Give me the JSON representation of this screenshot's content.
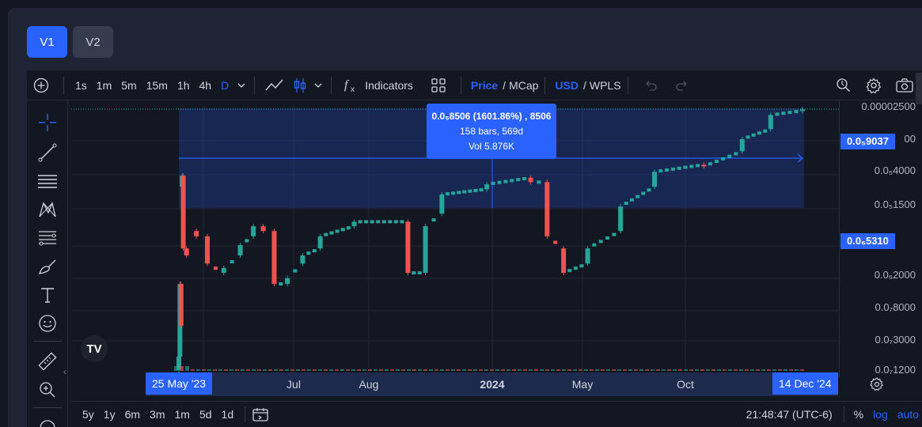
{
  "version_tabs": {
    "active": "V1",
    "inactive": "V2"
  },
  "toolbar": {
    "timeframes": [
      "1s",
      "1m",
      "5m",
      "15m",
      "1h",
      "4h",
      "D"
    ],
    "active_timeframe": "D",
    "indicators_label": "Indicators",
    "price_label": "Price",
    "mcap_label": "MCap",
    "usd_label": "USD",
    "wpls_label": "WPLS",
    "slash": "/"
  },
  "price_axis": {
    "ticks": [
      "0.00002500",
      "0.0₅4000",
      "0.0₅1500",
      "0.0₆2000",
      "0.0₇8000",
      "0.0₇3000",
      "0.0₇1200"
    ],
    "top_partial": "00",
    "current_price_tag": "0.0₅9037",
    "low_price_tag": "0.0₆5310"
  },
  "time_axis": {
    "start_tag": "25 May '23",
    "end_tag": "14 Dec '24",
    "labels": [
      "Jul",
      "Aug",
      "2024",
      "May",
      "Oct"
    ],
    "bold_label": "2024"
  },
  "measure_tooltip": {
    "line1": "0.0₅8506 (1601.86%) , 8506",
    "line2": "158 bars, 569d",
    "line3": "Vol 5.876K"
  },
  "bottom_bar": {
    "ranges": [
      "5y",
      "1y",
      "6m",
      "3m",
      "1m",
      "5d",
      "1d"
    ],
    "clock": "21:48:47 (UTC-6)",
    "percent": "%",
    "log": "log",
    "auto": "auto"
  },
  "logo_text": "TV",
  "colors": {
    "accent": "#2962ff",
    "up": "#26a69a",
    "down": "#ef5350",
    "background": "#131722",
    "panel": "#1e2433"
  },
  "chart_data": {
    "type": "candlestick",
    "title": "",
    "xlabel": "",
    "ylabel": "",
    "x_range": [
      "2023-05-25",
      "2024-12-14"
    ],
    "y_scale": "log",
    "grid": true,
    "series": [
      {
        "values": [
          {
            "t": "2023-05-25",
            "o": 1.2e-07,
            "c": 1.5e-07
          },
          {
            "t": "2023-05-26",
            "o": 1.5e-07,
            "c": 5e-07
          },
          {
            "t": "2023-05-27",
            "o": 5e-07,
            "c": 2.5e-07
          },
          {
            "t": "2023-05-28",
            "o": 2.5e-06,
            "c": 3e-06
          },
          {
            "t": "2023-05-29",
            "o": 3e-06,
            "c": 9e-07
          },
          {
            "t": "2023-06-01",
            "o": 9e-07,
            "c": 8e-07
          },
          {
            "t": "2023-06-10",
            "o": 1.2e-06,
            "c": 1.1e-06
          },
          {
            "t": "2023-06-20",
            "o": 1.1e-06,
            "c": 7e-07
          },
          {
            "t": "2023-07-05",
            "o": 6e-07,
            "c": 6.5e-07
          },
          {
            "t": "2023-07-20",
            "o": 8e-07,
            "c": 9.5e-07
          },
          {
            "t": "2023-08-01",
            "o": 1.1e-06,
            "c": 1.3e-06
          },
          {
            "t": "2023-08-10",
            "o": 1.3e-06,
            "c": 1.2e-06
          },
          {
            "t": "2023-08-20",
            "o": 1.2e-06,
            "c": 5e-07
          },
          {
            "t": "2023-09-01",
            "o": 5e-07,
            "c": 5.5e-07
          },
          {
            "t": "2023-09-15",
            "o": 7e-07,
            "c": 8e-07
          },
          {
            "t": "2023-10-01",
            "o": 9e-07,
            "c": 1.1e-06
          },
          {
            "t": "2023-11-01",
            "o": 1.3e-06,
            "c": 1.4e-06
          },
          {
            "t": "2023-12-20",
            "o": 1.4e-06,
            "c": 6e-07
          },
          {
            "t": "2024-01-05",
            "o": 6e-07,
            "c": 1.3e-06
          },
          {
            "t": "2024-01-20",
            "o": 1.6e-06,
            "c": 2.2e-06
          },
          {
            "t": "2024-03-01",
            "o": 2.4e-06,
            "c": 2.6e-06
          },
          {
            "t": "2024-04-10",
            "o": 2.9e-06,
            "c": 2.7e-06
          },
          {
            "t": "2024-04-25",
            "o": 2.7e-06,
            "c": 1.1e-06
          },
          {
            "t": "2024-05-10",
            "o": 9e-07,
            "c": 6e-07
          },
          {
            "t": "2024-06-01",
            "o": 7e-07,
            "c": 9e-07
          },
          {
            "t": "2024-07-01",
            "o": 1.2e-06,
            "c": 1.8e-06
          },
          {
            "t": "2024-08-01",
            "o": 2.5e-06,
            "c": 3.2e-06
          },
          {
            "t": "2024-09-15",
            "o": 3.6e-06,
            "c": 3.5e-06
          },
          {
            "t": "2024-10-20",
            "o": 4.5e-06,
            "c": 5.5e-06
          },
          {
            "t": "2024-11-15",
            "o": 6.5e-06,
            "c": 8.2e-06
          },
          {
            "t": "2024-12-14",
            "o": 8.8e-06,
            "c": 9e-06
          }
        ]
      }
    ],
    "measure": {
      "from": {
        "t": "2023-06-01",
        "price": 5.31e-07
      },
      "to": {
        "t": "2024-12-14",
        "price": 9.037e-06
      },
      "change_text": "0.0₅8506 (1601.86%) , 8506",
      "bars_text": "158 bars, 569d",
      "volume_text": "Vol 5.876K"
    }
  }
}
